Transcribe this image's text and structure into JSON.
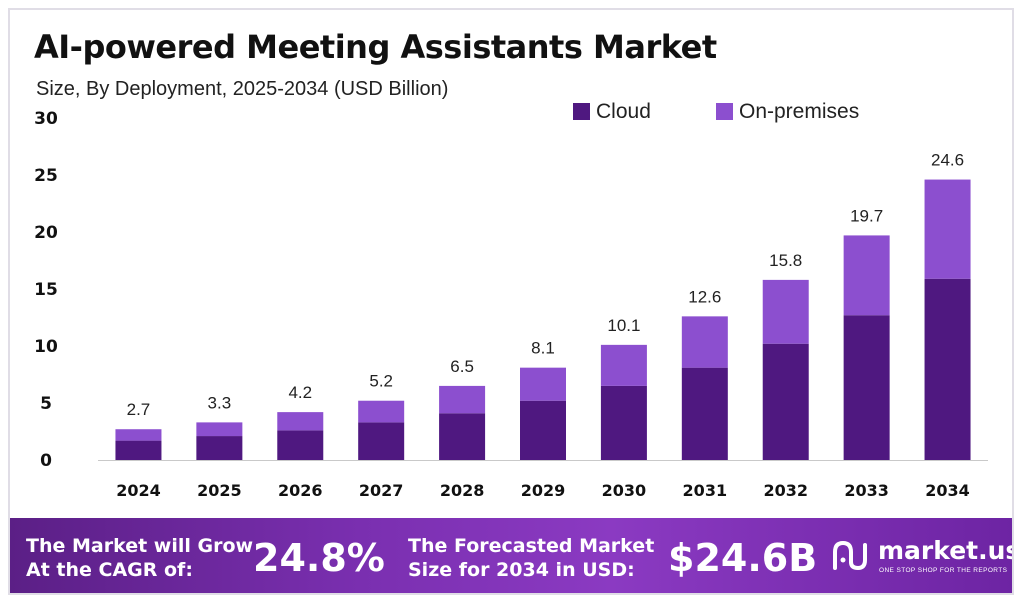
{
  "header": {
    "title": "AI-powered Meeting Assistants Market",
    "subtitle": "Size, By Deployment, 2025-2034 (USD Billion)"
  },
  "chart_data": {
    "type": "bar",
    "stacked": true,
    "categories": [
      "2024",
      "2025",
      "2026",
      "2027",
      "2028",
      "2029",
      "2030",
      "2031",
      "2032",
      "2033",
      "2034"
    ],
    "series": [
      {
        "name": "Cloud",
        "color": "#4f1880",
        "values": [
          1.7,
          2.1,
          2.6,
          3.3,
          4.1,
          5.2,
          6.5,
          8.1,
          10.2,
          12.7,
          15.9
        ]
      },
      {
        "name": "On-premises",
        "color": "#8c4fcf",
        "values": [
          1.0,
          1.2,
          1.6,
          1.9,
          2.4,
          2.9,
          3.6,
          4.5,
          5.6,
          7.0,
          8.7
        ]
      }
    ],
    "totals": [
      "2.7",
      "3.3",
      "4.2",
      "5.2",
      "6.5",
      "8.1",
      "10.1",
      "12.6",
      "15.8",
      "19.7",
      "24.6"
    ],
    "yticks": [
      "0",
      "5",
      "10",
      "15",
      "20",
      "25",
      "30"
    ],
    "ylim": [
      0,
      30
    ],
    "grid": false,
    "legend_position": "top-right"
  },
  "banner": {
    "cagr_line1": "The Market will Grow",
    "cagr_line2": "At the CAGR of:",
    "cagr_value": "24.8%",
    "forecast_line1": "The Forecasted Market",
    "forecast_line2": "Size for 2034 in USD:",
    "forecast_value": "$24.6B",
    "brand": "market.us",
    "tagline": "ONE STOP SHOP FOR THE REPORTS"
  }
}
